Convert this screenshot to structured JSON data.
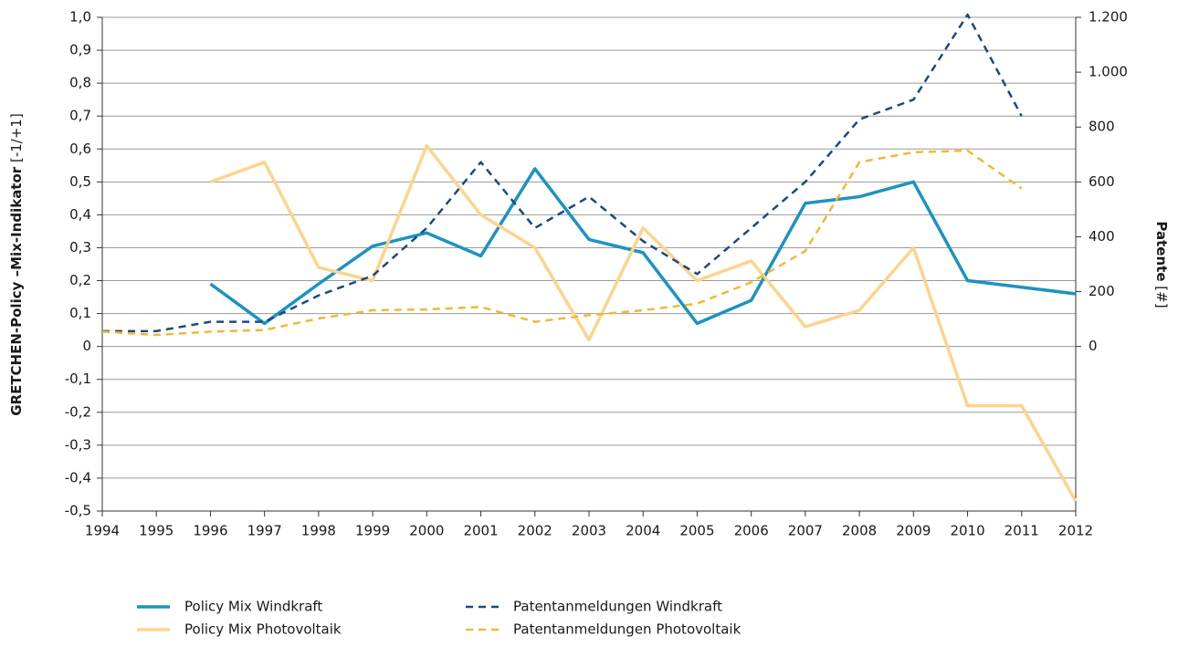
{
  "chart_data": {
    "type": "line",
    "y_label": "GRETCHEN-Policy –Mix-Indikator",
    "y_label_unit": "[-1/+1]",
    "y2_label": "Patente",
    "y2_label_unit": "[#]",
    "categories": [
      "1994",
      "1995",
      "1996",
      "1997",
      "1998",
      "1999",
      "2000",
      "2001",
      "2002",
      "2003",
      "2004",
      "2005",
      "2006",
      "2007",
      "2008",
      "2009",
      "2010",
      "2011",
      "2012"
    ],
    "series": [
      {
        "name": "Policy Mix Windkraft",
        "color": "#1b93c1",
        "dash": false,
        "values": [
          null,
          null,
          0.19,
          0.07,
          0.19,
          0.305,
          0.345,
          0.275,
          0.54,
          0.325,
          0.285,
          0.07,
          0.14,
          0.435,
          0.455,
          0.5,
          0.2,
          0.18,
          0.16
        ]
      },
      {
        "name": "Policy Mix Photovoltaik",
        "color": "#fdd48c",
        "dash": false,
        "values": [
          null,
          null,
          0.5,
          0.56,
          0.24,
          0.2,
          0.61,
          0.4,
          0.3,
          0.02,
          0.36,
          0.2,
          0.26,
          0.06,
          0.11,
          0.3,
          -0.18,
          -0.18,
          -0.47
        ]
      },
      {
        "name": "Patentanmeldungen Windkraft",
        "color": "#1c4a7c",
        "dash": true,
        "axis": "y2",
        "values": [
          56,
          56,
          90,
          90,
          186,
          258,
          432,
          672,
          432,
          546,
          384,
          264,
          432,
          600,
          828,
          900,
          1210,
          840,
          null
        ]
      },
      {
        "name": "Patentanmeldungen Photovoltaik",
        "color": "#f2b833",
        "dash": true,
        "axis": "y2",
        "values": [
          54,
          42,
          54,
          60,
          102,
          132,
          135,
          144,
          90,
          114,
          132,
          156,
          234,
          348,
          672,
          708,
          714,
          576,
          null
        ]
      }
    ],
    "ylim": [
      -0.5,
      1.0
    ],
    "yticks": [
      {
        "value": 1.0,
        "label": "1,0"
      },
      {
        "value": 0.9,
        "label": "0,9"
      },
      {
        "value": 0.8,
        "label": "0,8"
      },
      {
        "value": 0.7,
        "label": "0,7"
      },
      {
        "value": 0.6,
        "label": "0,6"
      },
      {
        "value": 0.5,
        "label": "0,5"
      },
      {
        "value": 0.4,
        "label": "0,4"
      },
      {
        "value": 0.3,
        "label": "0,3"
      },
      {
        "value": 0.2,
        "label": "0,2"
      },
      {
        "value": 0.1,
        "label": "0,1"
      },
      0,
      {
        "value": -0.1,
        "label": "-0,1"
      },
      {
        "value": -0.2,
        "label": "-0,2"
      },
      {
        "value": -0.3,
        "label": "-0,3"
      },
      {
        "value": -0.4,
        "label": "-0,4"
      },
      {
        "value": -0.5,
        "label": "-0,5"
      }
    ],
    "y2lim": [
      -600,
      1200
    ],
    "y2ticks": [
      {
        "value": 1200,
        "label": "1.200"
      },
      {
        "value": 1000,
        "label": "1.000"
      },
      800,
      600,
      400,
      200,
      0
    ],
    "grid": true,
    "legend": "bottom"
  }
}
